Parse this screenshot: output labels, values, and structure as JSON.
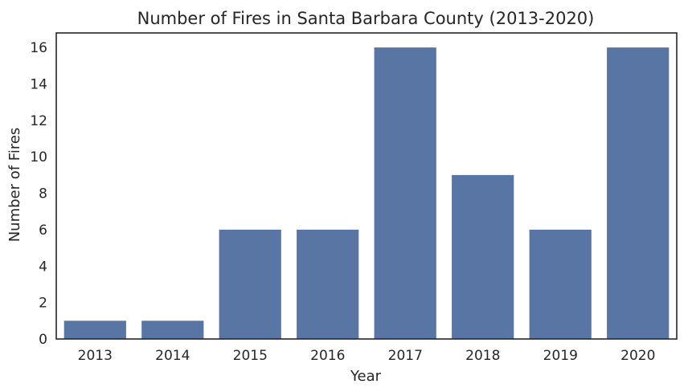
{
  "chart_data": {
    "type": "bar",
    "title": "Number of Fires in Santa Barbara County (2013-2020)",
    "xlabel": "Year",
    "ylabel": "Number of Fires",
    "categories": [
      "2013",
      "2014",
      "2015",
      "2016",
      "2017",
      "2018",
      "2019",
      "2020"
    ],
    "values": [
      1,
      1,
      6,
      6,
      16,
      9,
      6,
      16
    ],
    "ylim": [
      0,
      16.8
    ],
    "yticks": [
      0,
      2,
      4,
      6,
      8,
      10,
      12,
      14,
      16
    ],
    "grid": false,
    "bar_color": "#5875a4",
    "axis_color": "#262626",
    "background": "#ffffff"
  }
}
